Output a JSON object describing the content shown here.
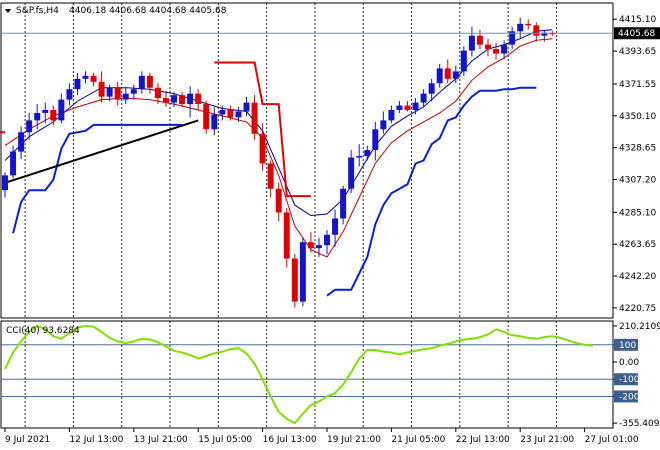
{
  "header": {
    "symbol_label": "S&P.fs,H4",
    "ohlc_text": "4406.18 4406.68 4404.68 4405.68"
  },
  "indicator": {
    "label": "CCI(40) 93.6284"
  },
  "colors": {
    "bull": "#1515c8",
    "bear": "#e00000",
    "ma_fast": "#00008b",
    "ma_slow": "#c00000",
    "stop_blue": "#0a1fd0",
    "stop_red": "#e00000",
    "trendline": "#000000",
    "cci": "#7fe000",
    "grid_dash": "#000000",
    "current_price_box": "#000000"
  },
  "chart_data": [
    {
      "type": "candlestick",
      "price_axis_labels": [
        "4415.10",
        "4393.65",
        "4371.55",
        "4350.10",
        "4328.65",
        "4307.20",
        "4285.10",
        "4263.65",
        "4242.20",
        "4220.75"
      ],
      "price_ticks": [
        4415.1,
        4393.65,
        4371.55,
        4350.1,
        4328.65,
        4307.2,
        4285.1,
        4263.65,
        4242.2,
        4220.75
      ],
      "current_price": "4405.68",
      "ylim": [
        4218,
        4422
      ],
      "x_labels": [
        "9 Jul 2021",
        "12 Jul 13:00",
        "13 Jul 21:00",
        "15 Jul 05:00",
        "16 Jul 13:00",
        "19 Jul 21:00",
        "21 Jul 05:00",
        "22 Jul 13:00",
        "23 Jul 21:00",
        "27 Jul 01:00"
      ],
      "x_label_bars": [
        0,
        8,
        16,
        24,
        32,
        40,
        48,
        56,
        64,
        72
      ],
      "day_separators": [
        2.5,
        8.5,
        14.5,
        20.5,
        26.5,
        32.5,
        38.5,
        44.5,
        50.5,
        56.5,
        62.5,
        68.5
      ],
      "candles": [
        [
          4300,
          4312,
          4295,
          4310
        ],
        [
          4310,
          4330,
          4308,
          4326
        ],
        [
          4326,
          4343,
          4321,
          4339
        ],
        [
          4339,
          4352,
          4334,
          4347
        ],
        [
          4347,
          4358,
          4341,
          4352
        ],
        [
          4352,
          4359,
          4345,
          4354
        ],
        [
          4354,
          4357,
          4344,
          4347
        ],
        [
          4347,
          4365,
          4345,
          4361
        ],
        [
          4361,
          4372,
          4357,
          4368
        ],
        [
          4368,
          4379,
          4364,
          4375
        ],
        [
          4375,
          4380,
          4372,
          4377
        ],
        [
          4377,
          4379,
          4370,
          4373
        ],
        [
          4373,
          4380,
          4359,
          4363
        ],
        [
          4363,
          4371,
          4360,
          4369
        ],
        [
          4369,
          4373,
          4357,
          4361
        ],
        [
          4361,
          4369,
          4358,
          4365
        ],
        [
          4365,
          4371,
          4361,
          4368
        ],
        [
          4368,
          4380,
          4365,
          4377
        ],
        [
          4377,
          4379,
          4365,
          4369
        ],
        [
          4369,
          4372,
          4358,
          4362
        ],
        [
          4362,
          4367,
          4356,
          4359
        ],
        [
          4359,
          4366,
          4356,
          4364
        ],
        [
          4364,
          4366,
          4356,
          4358
        ],
        [
          4358,
          4370,
          4349,
          4365
        ],
        [
          4365,
          4368,
          4354,
          4358
        ],
        [
          4358,
          4360,
          4338,
          4341
        ],
        [
          4341,
          4356,
          4337,
          4351
        ],
        [
          4351,
          4357,
          4347,
          4354
        ],
        [
          4354,
          4357,
          4347,
          4349
        ],
        [
          4349,
          4356,
          4346,
          4353
        ],
        [
          4353,
          4363,
          4350,
          4359
        ],
        [
          4359,
          4364,
          4334,
          4338
        ],
        [
          4338,
          4345,
          4313,
          4318
        ],
        [
          4318,
          4320,
          4295,
          4301
        ],
        [
          4301,
          4305,
          4279,
          4285
        ],
        [
          4285,
          4288,
          4248,
          4254
        ],
        [
          4254,
          4257,
          4221,
          4225
        ],
        [
          4225,
          4268,
          4222,
          4265
        ],
        [
          4265,
          4272,
          4258,
          4261
        ],
        [
          4261,
          4268,
          4255,
          4263
        ],
        [
          4263,
          4273,
          4257,
          4270
        ],
        [
          4270,
          4287,
          4262,
          4281
        ],
        [
          4281,
          4303,
          4277,
          4301
        ],
        [
          4301,
          4327,
          4298,
          4322
        ],
        [
          4322,
          4331,
          4316,
          4323
        ],
        [
          4323,
          4330,
          4320,
          4327
        ],
        [
          4327,
          4346,
          4320,
          4341
        ],
        [
          4341,
          4353,
          4338,
          4347
        ],
        [
          4347,
          4357,
          4345,
          4354
        ],
        [
          4354,
          4360,
          4352,
          4357
        ],
        [
          4357,
          4360,
          4353,
          4354
        ],
        [
          4354,
          4362,
          4351,
          4359
        ],
        [
          4359,
          4368,
          4356,
          4365
        ],
        [
          4365,
          4375,
          4360,
          4372
        ],
        [
          4372,
          4385,
          4369,
          4382
        ],
        [
          4382,
          4388,
          4372,
          4375
        ],
        [
          4375,
          4384,
          4372,
          4380
        ],
        [
          4380,
          4397,
          4377,
          4394
        ],
        [
          4394,
          4410,
          4390,
          4404
        ],
        [
          4404,
          4408,
          4395,
          4398
        ],
        [
          4398,
          4402,
          4390,
          4395
        ],
        [
          4395,
          4399,
          4388,
          4392
        ],
        [
          4392,
          4401,
          4388,
          4398
        ],
        [
          4398,
          4410,
          4395,
          4407
        ],
        [
          4407,
          4416,
          4402,
          4412
        ],
        [
          4412,
          4415,
          4408,
          4411
        ],
        [
          4411,
          4413,
          4400,
          4404
        ],
        [
          4404,
          4408,
          4400,
          4406
        ],
        [
          4406,
          4407,
          4404,
          4405
        ]
      ],
      "ma_fast": [
        [
          0,
          4320
        ],
        [
          3,
          4336
        ],
        [
          6,
          4346
        ],
        [
          9,
          4360
        ],
        [
          12,
          4369
        ],
        [
          15,
          4369
        ],
        [
          18,
          4368
        ],
        [
          21,
          4365
        ],
        [
          24,
          4360
        ],
        [
          27,
          4355
        ],
        [
          30,
          4353
        ],
        [
          32,
          4340
        ],
        [
          34,
          4315
        ],
        [
          36,
          4290
        ],
        [
          38,
          4283
        ],
        [
          40,
          4284
        ],
        [
          42,
          4294
        ],
        [
          44,
          4312
        ],
        [
          46,
          4330
        ],
        [
          48,
          4343
        ],
        [
          50,
          4350
        ],
        [
          52,
          4356
        ],
        [
          54,
          4366
        ],
        [
          56,
          4375
        ],
        [
          58,
          4387
        ],
        [
          60,
          4395
        ],
        [
          62,
          4398
        ],
        [
          64,
          4402
        ],
        [
          66,
          4407
        ],
        [
          68,
          4408
        ]
      ],
      "ma_slow": [
        [
          0,
          4330
        ],
        [
          3,
          4341
        ],
        [
          6,
          4350
        ],
        [
          9,
          4356
        ],
        [
          12,
          4361
        ],
        [
          15,
          4362
        ],
        [
          18,
          4361
        ],
        [
          21,
          4358
        ],
        [
          24,
          4354
        ],
        [
          27,
          4350
        ],
        [
          30,
          4346
        ],
        [
          32,
          4335
        ],
        [
          34,
          4310
        ],
        [
          36,
          4276
        ],
        [
          38,
          4260
        ],
        [
          40,
          4255
        ],
        [
          42,
          4272
        ],
        [
          44,
          4295
        ],
        [
          46,
          4318
        ],
        [
          48,
          4332
        ],
        [
          50,
          4340
        ],
        [
          52,
          4346
        ],
        [
          54,
          4352
        ],
        [
          56,
          4360
        ],
        [
          58,
          4374
        ],
        [
          60,
          4383
        ],
        [
          62,
          4389
        ],
        [
          64,
          4397
        ],
        [
          66,
          4401
        ],
        [
          68,
          4402
        ]
      ],
      "stop_blue": [
        [
          1,
          4271
        ],
        [
          2,
          4292
        ],
        [
          3,
          4300
        ],
        [
          5,
          4300
        ],
        [
          6,
          4307
        ],
        [
          7,
          4328
        ],
        [
          8,
          4338
        ],
        [
          10,
          4340
        ],
        [
          11,
          4344
        ],
        [
          22,
          4344
        ],
        null,
        [
          40,
          4229
        ],
        [
          41,
          4233
        ],
        [
          43,
          4233
        ],
        [
          45,
          4255
        ],
        [
          46,
          4277
        ],
        [
          47,
          4290
        ],
        [
          48,
          4298
        ],
        [
          50,
          4304
        ],
        [
          51,
          4318
        ],
        [
          52,
          4320
        ],
        [
          53,
          4331
        ],
        [
          54,
          4335
        ],
        [
          55,
          4347
        ],
        [
          56,
          4349
        ],
        [
          57,
          4357
        ],
        [
          58,
          4363
        ],
        [
          59,
          4367
        ],
        [
          61,
          4367
        ],
        [
          62,
          4368
        ],
        [
          63,
          4368
        ],
        [
          64,
          4369
        ],
        [
          66,
          4369
        ]
      ],
      "stop_red": [
        [
          -1,
          4339
        ],
        [
          0,
          4339
        ],
        null,
        [
          26,
          4386
        ],
        [
          31,
          4386
        ],
        [
          32,
          4358
        ],
        [
          34,
          4358
        ],
        [
          35,
          4296
        ],
        [
          38,
          4296
        ]
      ],
      "trendline": [
        [
          0,
          4305
        ],
        [
          24,
          4347
        ]
      ]
    },
    {
      "type": "line",
      "name": "CCI(40)",
      "axis_labels": [
        "210.2109",
        "100",
        "0.00",
        "-100",
        "-200",
        "-355.409"
      ],
      "levels": [
        100,
        -100,
        -200
      ],
      "ylim": [
        -360,
        215
      ],
      "current": 93.6284,
      "points": [
        [
          0,
          -40
        ],
        [
          1,
          55
        ],
        [
          2,
          120
        ],
        [
          3,
          175
        ],
        [
          4,
          210
        ],
        [
          5,
          190
        ],
        [
          6,
          150
        ],
        [
          7,
          135
        ],
        [
          8,
          170
        ],
        [
          9,
          200
        ],
        [
          10,
          210
        ],
        [
          11,
          205
        ],
        [
          12,
          175
        ],
        [
          13,
          140
        ],
        [
          14,
          120
        ],
        [
          15,
          110
        ],
        [
          16,
          120
        ],
        [
          17,
          135
        ],
        [
          18,
          130
        ],
        [
          19,
          115
        ],
        [
          20,
          90
        ],
        [
          21,
          65
        ],
        [
          22,
          55
        ],
        [
          23,
          40
        ],
        [
          24,
          20
        ],
        [
          25,
          35
        ],
        [
          26,
          50
        ],
        [
          27,
          60
        ],
        [
          28,
          75
        ],
        [
          29,
          80
        ],
        [
          30,
          50
        ],
        [
          31,
          -10
        ],
        [
          32,
          -100
        ],
        [
          33,
          -200
        ],
        [
          34,
          -290
        ],
        [
          35,
          -330
        ],
        [
          36,
          -355
        ],
        [
          37,
          -300
        ],
        [
          38,
          -250
        ],
        [
          39,
          -230
        ],
        [
          40,
          -200
        ],
        [
          41,
          -180
        ],
        [
          42,
          -130
        ],
        [
          43,
          -60
        ],
        [
          44,
          20
        ],
        [
          45,
          70
        ],
        [
          46,
          70
        ],
        [
          47,
          60
        ],
        [
          48,
          55
        ],
        [
          49,
          45
        ],
        [
          50,
          55
        ],
        [
          51,
          65
        ],
        [
          52,
          75
        ],
        [
          53,
          80
        ],
        [
          54,
          95
        ],
        [
          55,
          105
        ],
        [
          56,
          120
        ],
        [
          57,
          130
        ],
        [
          58,
          135
        ],
        [
          59,
          145
        ],
        [
          60,
          160
        ],
        [
          61,
          190
        ],
        [
          62,
          175
        ],
        [
          63,
          155
        ],
        [
          64,
          150
        ],
        [
          65,
          140
        ],
        [
          66,
          135
        ],
        [
          67,
          145
        ],
        [
          68,
          150
        ],
        [
          69,
          140
        ],
        [
          70,
          125
        ],
        [
          71,
          110
        ],
        [
          72,
          100
        ],
        [
          73,
          95
        ]
      ]
    }
  ]
}
